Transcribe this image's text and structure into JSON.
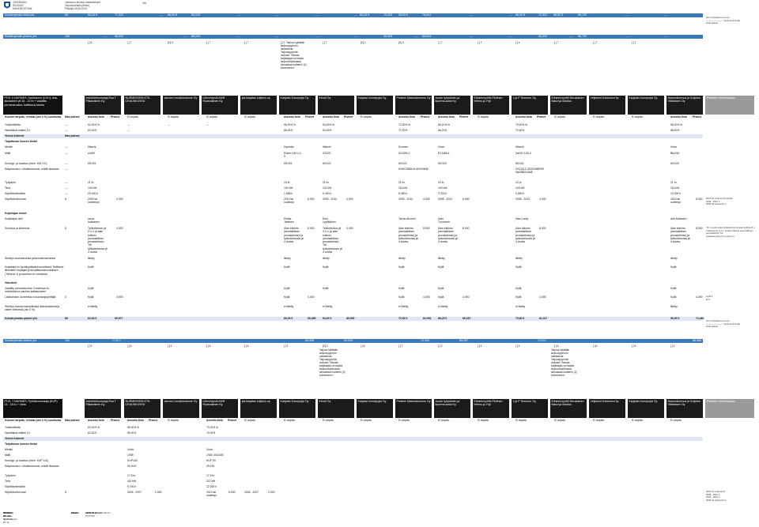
{
  "header": {
    "logo_lines": [
      "JOENSUUN",
      "SEUDUN",
      "HANKINTATOIMI"
    ],
    "meta_lines": [
      "Joensuun seudun hankintatoimi",
      "Tarjousvertailu (lähes)",
      "Päiväys 09.05.2013"
    ],
    "page_number": "4/6"
  },
  "top_band": {
    "label": "Kohderyhmän hinta yht.",
    "cells": [
      "80",
      "66,00 €",
      "77,333",
      "---",
      "56,00 €",
      "80,000",
      "---",
      "---",
      "---",
      "---",
      "---",
      "66,00 €",
      "70,303",
      "58,00 €",
      "78,644",
      "---",
      "---",
      "66,00 €",
      "70,303",
      "60,50 €",
      "66,793",
      "---",
      "---"
    ]
  },
  "points_band": {
    "label": "Kohderyhmän pisteet yht.",
    "cells": [
      "100",
      "---",
      "85,333",
      "---",
      "88,000",
      "---",
      "---",
      "---",
      "---",
      "90,303",
      "---",
      "88,644",
      "---",
      "---",
      "80,303",
      "---",
      "86,793",
      "---",
      "---"
    ]
  },
  "notes_top": [
    "pienin pisteiden summa",
    "---------------------- * tiedonpoiminnat",
    "hinta pisteet"
  ],
  "ranks_top": [
    "[ ] 5.",
    "[ ] 7.",
    "[X] 3.",
    "[ ] 7.",
    "[ ] 7.",
    "[ ] 2.",
    "[ ] 7.",
    "[X] 1.",
    "[X] 3.",
    "[ ] 7.",
    "[ ] 7.",
    "[ ] 4.",
    "[ ] 7.",
    "[ ] 7.",
    "[ ] 7."
  ],
  "popup_top": "[ ] 2. Tarjous hylätään tarjouspyynnön vastaisena. Tarjouspyynnön mukaan \"Samaa kuljettajaa voi tarjota tarjousohjelmassa ainoastaan kahteen (2) kohteeseen.\"",
  "section1": {
    "title": "POS. 6 NURMES: Kaivinkone (KXH), tela-alustainen yli 16 - 22 tn + vaadittu perusvarustus: kallistuva kauha",
    "vendors": [
      "Insinöörikonepaja Esa T Pikkarainen Ky",
      "NURMEKSEN KTK-OSUUSKUNTA",
      "Jarmon monitoimikone Oy",
      "Liikenhiymä M&R Ruokolainen Ky",
      "ylä-karjalan kuljetus oy",
      "Karjalan Konepojat Oy",
      "Ehroll Oy",
      "Karjalan Konepojat Oy",
      "Pielisen Maanrakennus Oy",
      "Juuan työpalvelu ja kuorma-autot Ky",
      "Elinkeinoyhtiö Pielinen Heimo ja Yrjö",
      "J ja P Timonen Oy",
      "Elinkeinoyhtiö Nevalainen Mauri ja Markku",
      "Veljekset Kokkonen ky",
      "Karjalan Konepojat Oy",
      "Maanrakennus ja Kuljetus Väänänen Oy"
    ],
    "last_col": "Pisteiden laskentatapa",
    "sub_header_label": "Koneen tarjottu, verotan (alv 0 %) suoritusta",
    "max_label": "Max pisteet",
    "state_labels": [
      "Annettu tieto",
      "Pisteet",
      "Ei tarjottu"
    ],
    "rows": [
      {
        "label": "Yksikkötiintta",
        "max": "---",
        "values": [
          "62,00 € /h",
          "---",
          "---",
          "---",
          "66,00 € /h",
          "54,00 € /h",
          "72,00 € /h",
          "66,20 € /h",
          "70,60 € /h",
          "58,00 € /h"
        ]
      },
      {
        "label": "Hankittava määrä 1 h",
        "max": "---",
        "values": [
          "62,00 €",
          "---",
          "66,00 €",
          "54,00 €",
          "72,00 €",
          "66,20 €",
          "70,60 €",
          "58,00 €"
        ]
      },
      {
        "label": "Yleiset kriteerit",
        "max": "Max pisteet",
        "values": []
      },
      {
        "label": "Tarjottavan koneen tiedot",
        "values": []
      },
      {
        "label": "Merkki",
        "max": "---",
        "values": [
          "Hitachi",
          "Hyundai",
          "Hitachi",
          "Doosan",
          "Volvo",
          "Hitachi",
          "Volvo"
        ]
      },
      {
        "label": "Malli",
        "max": "---",
        "values": [
          "zx200",
          "Robex 160 LC-9",
          "ZX225",
          "DX225LC",
          "EC180DL",
          "ZaXIS 210LC",
          "Bkz210"
        ]
      },
      {
        "label": "Konetyp- ja luokitus (esim. KKH 21)",
        "max": "---",
        "values": [
          "KKH21",
          "KKH21",
          "KKH21",
          "KKH21",
          "KKH20",
          "KKH21",
          "KKH20"
        ]
      },
      {
        "label": "Sarjanumero / rekisteritunnus, mikäli tiedossa",
        "max": "---",
        "values": [
          "DHKCEBADH A0000848",
          "ZX210LC-5G0CMBEEE 3A03B001848"
        ]
      },
      {
        "label": "Työpaino",
        "max": "---",
        "values": [
          "21 tn",
          "19 tn",
          "22 tn",
          "22 tn",
          "20 tn",
          "22 tn",
          "21 tn"
        ]
      },
      {
        "label": "Teho",
        "max": "---",
        "values": [
          "103 kW",
          "102 kW",
          "122 kW",
          "115 kW",
          "100 kW",
          "103 kW",
          "115 kW"
        ]
      },
      {
        "label": "Käyttötuntimäärä",
        "max": "---",
        "values": [
          "23 000 h",
          "1 588 h",
          "5 400 h",
          "5 450 h",
          "3 202 h",
          "5 800 h",
          "10 000 h"
        ]
      },
      {
        "label": "Käyttöönottovuosi",
        "max": "8",
        "values": [
          "2003 tai vanhempi",
          "0,000",
          "2013 tai uudempi",
          "8,000",
          "2006 - 2012",
          "4,000",
          "2006 - 2012",
          "4,000",
          "2006 - 2012",
          "4,000",
          "2008 - 2012",
          "4,000",
          "2013 tai uudempi",
          "8,000"
        ]
      }
    ],
    "note_year": [
      "2013 tai uudempi 8 pistettä",
      "2006 - 2012 4",
      "2005 tai vanhempi 0"
    ],
    "driver_section": "Kuljettajan tiedot",
    "driver_rows": [
      {
        "label": "Kuljettajan nimi",
        "values": [
          "osmo hukkanen",
          "Pekka Jäntinen",
          "Eero Lyytikäinen",
          "Tarmo Ahonen",
          "Aatu Tuononen",
          "Harri Laivy",
          "Ahti Mollanen"
        ]
      },
      {
        "label": "Koulutus ja kokemus",
        "max": "8",
        "values": [
          "Työkokemus yli 2-4 v. ja alan tutkinto (ammatillinen perustutkinto) TAI työkokemusta yli 4 vuotta",
          "4,000",
          "Alan tutkinto (ammatillinen perustutkinto) ja työkokemusta yli 4 vuotta",
          "8,000"
        ]
      },
      {
        "label": "Selvitys koulutuksesta ja/tai kokemuksesta",
        "values": [
          "liitetty",
          "liitetty",
          "liitetty",
          "liitetty",
          "liitetty",
          "liitetty",
          "liitetty"
        ]
      },
      {
        "label": "Kuljettaja on hyväksyttävästi suorittanut Tieliikenn liikenteen ohjaajan ja turvallisuuskoulutuksen (Tieturva 1) ja suoritus on voimassa.",
        "values": [
          "Kyllä",
          "Kyllä",
          "Kyllä",
          "Kyllä",
          "Kyllä",
          "Kyllä",
          "Kyllä"
        ]
      },
      {
        "label": "Varusteet",
        "values": []
      },
      {
        "label": "Vaadittu perusvarustus: Koneessa on mahdollisuus kauhan kallistukseen",
        "values": [
          "Kyllä",
          "Kyllä",
          "Kyllä",
          "Kyllä",
          "Kyllä",
          "Kyllä",
          "Kyllä"
        ]
      },
      {
        "label": "Lisävaruste: koneessa on kauhanpyörittäjä",
        "max": "4",
        "values": [
          "Kyllä",
          "4,000",
          "Kyllä",
          "4,000",
          "Kyllä",
          "4,000",
          "Kyllä",
          "4,000",
          "Kyllä",
          "4,000",
          "Kyllä",
          "4,000"
        ]
      },
      {
        "label": "Selvitys muista mahdollisista lisävarusteista ja niiden hinnoista (alv 0 %)",
        "values": [
          "ei liitetty",
          "ei liitetty",
          "ei liitetty",
          "ei liitetty",
          "ei liitetty",
          "ei liitetty",
          "liitetty"
        ]
      }
    ],
    "driver_note": [
      "Yli 4 vuoden alan työkokemus tai alan tutkinto 8 p",
      "Työkokemus 2-4 v. ja alan tutkinto (ammatillinen perustutkinto) TAI",
      "työkokemusta yli 4 vuotta 4 p"
    ],
    "equip_note": [
      "Kyllä 4",
      "Ei 0"
    ],
    "totals": {
      "label": "Kohderyhmän pisteet yht.",
      "cells": [
        "80",
        "62,00 €",
        "69,677",
        "66,00 €",
        "65,455",
        "54,00 €",
        "80,000",
        "72,00 €",
        "60,000",
        "66,20 €",
        "65,257",
        "70,60 €",
        "61,017",
        "58,00 €",
        "74,483"
      ]
    },
    "points_band": {
      "label": "Kohderyhmän pisteet yht.",
      "cells": [
        "100",
        "77,677",
        "85,455",
        "92,000",
        "72,000",
        "85,257",
        "73,017",
        "86,483"
      ]
    },
    "ranks": [
      "[ ] 5.",
      "[ ] 6.",
      "[ ] 6.",
      "[ ] 2.",
      "[ ] 6.",
      "[X] 1.",
      "[ ] 7.",
      "[ ] 3.",
      "[ ] 6.",
      "[ ] 5.",
      "[ ] 6.",
      "[ ] 2."
    ],
    "points_note": [
      "pienin pisteiden summa",
      "---------------------- * tiedonpoiminnat",
      "hinta pisteet"
    ],
    "popup": "Tarjous hylätään tarjouspyynnön vastaisena. Tarjouspyynnön mukaan \"Samaa kuljettajaa voi tarjota tarjousohjelmassa ainoastaan kahteen (2) kohteeseen.\""
  },
  "section2": {
    "title": "POS. 7 NURMES: Pyöräkuormaaja (KUP) 14 - 18 tn + vaha",
    "vendors": [
      "Insinöörikonepaja Esa T Pikkarainen Ky",
      "NURMEKSEN KTK-OSUUSKUNTA",
      "Jarmon monitoimikone Oy",
      "Liikenhiymä M&R Ruokolainen Ky",
      "ylä-karjalan kuljetus oy",
      "Karjalan Konepojat Oy",
      "Ehroll Oy",
      "Karjalan Konepojat Oy",
      "Pielisen Maanrakennus Oy",
      "Juuan työpalvelu ja kuorma-autot Ky",
      "Elinkeinoyhtiö Pielinen Heimo ja Yrjö",
      "J ja P Timonen Oy",
      "Elinkeinoyhtiö Nevalainen Mauri ja Markku",
      "Veljekset Kokkonen ky",
      "Karjalan Konepojat Oy",
      "Maanrakennus ja Kuljetus Väänänen Oy"
    ],
    "last_col": "Pisteiden laskentatapa",
    "sub_header_label": "Koneen tarjottu, verotan (alv 0 %) suoritusta",
    "rows": [
      {
        "label": "Yksikkötiintta",
        "values": [
          "62,00 € /h",
          "59,00 € /h",
          "70,00 € /h"
        ]
      },
      {
        "label": "Hankittava määrä 1 h",
        "values": [
          "62,00 €",
          "59,00 €",
          "70,00 €"
        ]
      },
      {
        "label": "Yleiset kriteerit",
        "values": []
      },
      {
        "label": "Tarjottavan koneen tiedot",
        "values": []
      },
      {
        "label": "Merkki",
        "values": [
          "Volvo",
          "Volvo"
        ]
      },
      {
        "label": "Malli",
        "values": [
          "L90E",
          "L90E 4X4/300"
        ]
      },
      {
        "label": "Konetyp- ja luokitus (esim. KUP 110)",
        "values": [
          "KUP100",
          "KUP 90"
        ]
      },
      {
        "label": "Sarjanumero / rekisteritunnus, mikäli tiedossa",
        "values": [
          "50-HAY",
          "29-FAI"
        ]
      },
      {
        "label": "Työpaino",
        "values": [
          "17,5 tn",
          "17,5 tn"
        ]
      },
      {
        "label": "Teho",
        "values": [
          "110 kW",
          "112 kW"
        ]
      },
      {
        "label": "Käyttötuntimäärä",
        "values": [
          "9 700 h",
          "12 000 h"
        ]
      },
      {
        "label": "Käyttöönottovuosi",
        "max": "8",
        "values": [
          "2004 - 2007",
          "2,000",
          "2013 tai uudempi",
          "8,000",
          "2004 - 2007",
          "2,000"
        ]
      }
    ],
    "note_year": [
      "2013 tai uudempi 8",
      "2008 - 2012 4",
      "2004 - 2007 2",
      "2003 tai vanhempi 0"
    ]
  },
  "footer": {
    "col1": [
      "Joensuun seudun hankintatoimi",
      "Lakkalan, 10, rak. 44 2. krs, PL 11",
      "80101 Joensuu",
      "0242748-2"
    ],
    "col2": [
      "Puhelin",
      "Faksi",
      "Email",
      "Internet"
    ],
    "col3": [
      "+358 13 2677040",
      "",
      "hankinta@jns.fi",
      "www.jns.fi/hankintatoimi"
    ]
  }
}
